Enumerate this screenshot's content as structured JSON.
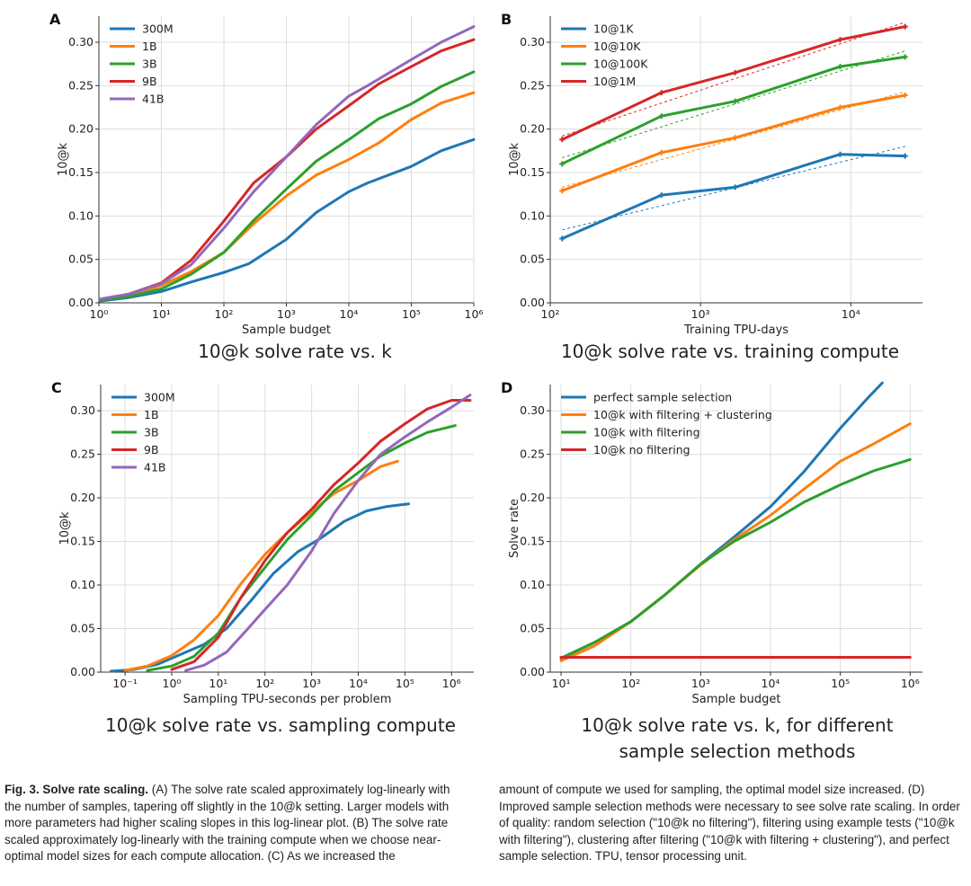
{
  "colors": {
    "blue": "#1f77b4",
    "orange": "#ff7f0e",
    "green": "#2ca02c",
    "red": "#d62728",
    "purple": "#9467bd",
    "grid": "#dddddd"
  },
  "chart_data": [
    {
      "id": "A",
      "type": "line",
      "panel_letter": "A",
      "title": "10@k solve rate vs. k",
      "xlabel": "Sample budget",
      "ylabel": "10@k",
      "xscale": "log",
      "xlim": [
        1,
        1000000
      ],
      "ylim": [
        0,
        0.33
      ],
      "xticks": [
        1,
        10,
        100,
        1000,
        10000,
        100000,
        1000000
      ],
      "xtick_labels": [
        "10⁰",
        "10¹",
        "10²",
        "10³",
        "10⁴",
        "10⁵",
        "10⁶"
      ],
      "yticks": [
        0,
        0.05,
        0.1,
        0.15,
        0.2,
        0.25,
        0.3
      ],
      "ytick_labels": [
        "0.00",
        "0.05",
        "0.10",
        "0.15",
        "0.20",
        "0.25",
        "0.30"
      ],
      "legend_loc": "upper-left",
      "series": [
        {
          "name": "300M",
          "color": "blue",
          "x": [
            1,
            3,
            10,
            30,
            100,
            250,
            1000,
            3000,
            10000,
            20000,
            100000,
            300000,
            1000000
          ],
          "y": [
            0.002,
            0.006,
            0.013,
            0.024,
            0.035,
            0.045,
            0.073,
            0.104,
            0.128,
            0.138,
            0.157,
            0.175,
            0.188
          ]
        },
        {
          "name": "1B",
          "color": "orange",
          "x": [
            1,
            3,
            10,
            30,
            100,
            300,
            1000,
            3000,
            10000,
            30000,
            100000,
            300000,
            1000000
          ],
          "y": [
            0.003,
            0.008,
            0.02,
            0.036,
            0.058,
            0.091,
            0.123,
            0.147,
            0.165,
            0.184,
            0.211,
            0.23,
            0.242
          ]
        },
        {
          "name": "3B",
          "color": "green",
          "x": [
            1,
            3,
            10,
            30,
            100,
            300,
            1000,
            3000,
            10000,
            30000,
            100000,
            300000,
            1000000
          ],
          "y": [
            0.003,
            0.007,
            0.016,
            0.033,
            0.058,
            0.095,
            0.131,
            0.163,
            0.188,
            0.212,
            0.229,
            0.249,
            0.266
          ]
        },
        {
          "name": "9B",
          "color": "red",
          "x": [
            1,
            3,
            10,
            30,
            100,
            300,
            1000,
            3000,
            10000,
            30000,
            100000,
            300000,
            1000000
          ],
          "y": [
            0.004,
            0.01,
            0.023,
            0.049,
            0.094,
            0.138,
            0.168,
            0.2,
            0.227,
            0.252,
            0.272,
            0.29,
            0.303
          ]
        },
        {
          "name": "41B",
          "color": "purple",
          "x": [
            1,
            3,
            10,
            30,
            100,
            300,
            1000,
            3000,
            10000,
            20000,
            100000,
            300000,
            1000000
          ],
          "y": [
            0.004,
            0.01,
            0.022,
            0.044,
            0.086,
            0.128,
            0.168,
            0.205,
            0.238,
            0.25,
            0.28,
            0.3,
            0.318
          ]
        }
      ]
    },
    {
      "id": "B",
      "type": "line",
      "panel_letter": "B",
      "title": "10@k solve rate vs. training compute",
      "xlabel": "Training TPU-days",
      "ylabel": "10@k",
      "xscale": "log",
      "xlim": [
        100,
        30000
      ],
      "ylim": [
        0,
        0.33
      ],
      "xticks": [
        100,
        1000,
        10000
      ],
      "xtick_labels": [
        "10²",
        "10³",
        "10⁴"
      ],
      "yticks": [
        0,
        0.05,
        0.1,
        0.15,
        0.2,
        0.25,
        0.3
      ],
      "ytick_labels": [
        "0.00",
        "0.05",
        "0.10",
        "0.15",
        "0.20",
        "0.25",
        "0.30"
      ],
      "legend_loc": "upper-left",
      "markers": true,
      "series": [
        {
          "name": "10@1K",
          "color": "blue",
          "x": [
            120,
            550,
            1700,
            8500,
            23000
          ],
          "y": [
            0.074,
            0.124,
            0.133,
            0.171,
            0.169
          ],
          "fit": [
            [
              120,
              0.084
            ],
            [
              23000,
              0.18
            ]
          ]
        },
        {
          "name": "10@10K",
          "color": "orange",
          "x": [
            120,
            550,
            1700,
            8500,
            23000
          ],
          "y": [
            0.129,
            0.173,
            0.19,
            0.225,
            0.239
          ],
          "fit": [
            [
              120,
              0.133
            ],
            [
              23000,
              0.243
            ]
          ]
        },
        {
          "name": "10@100K",
          "color": "green",
          "x": [
            120,
            550,
            1700,
            8500,
            23000
          ],
          "y": [
            0.16,
            0.215,
            0.232,
            0.272,
            0.283
          ],
          "fit": [
            [
              120,
              0.167
            ],
            [
              23000,
              0.29
            ]
          ]
        },
        {
          "name": "10@1M",
          "color": "red",
          "x": [
            120,
            550,
            1700,
            8500,
            23000
          ],
          "y": [
            0.188,
            0.242,
            0.265,
            0.303,
            0.318
          ],
          "fit": [
            [
              120,
              0.192
            ],
            [
              23000,
              0.323
            ]
          ]
        }
      ]
    },
    {
      "id": "C",
      "type": "line",
      "panel_letter": "C",
      "title": "10@k solve rate vs. sampling compute",
      "xlabel": "Sampling TPU-seconds per problem",
      "ylabel": "10@k",
      "xscale": "log",
      "xlim": [
        0.03,
        3000000
      ],
      "ylim": [
        0,
        0.33
      ],
      "xticks": [
        0.1,
        1,
        10,
        100,
        1000,
        10000,
        100000,
        1000000
      ],
      "xtick_labels": [
        "10⁻¹",
        "10⁰",
        "10¹",
        "10²",
        "10³",
        "10⁴",
        "10⁵",
        "10⁶"
      ],
      "yticks": [
        0,
        0.05,
        0.1,
        0.15,
        0.2,
        0.25,
        0.3
      ],
      "ytick_labels": [
        "0.00",
        "0.05",
        "0.10",
        "0.15",
        "0.20",
        "0.25",
        "0.30"
      ],
      "legend_loc": "upper-left",
      "series": [
        {
          "name": "300M",
          "color": "blue",
          "x": [
            0.05,
            0.15,
            0.5,
            1.5,
            5,
            15,
            50,
            150,
            500,
            1500,
            5000,
            15000,
            40000,
            120000
          ],
          "y": [
            0.001,
            0.003,
            0.009,
            0.02,
            0.032,
            0.05,
            0.082,
            0.113,
            0.138,
            0.153,
            0.173,
            0.185,
            0.19,
            0.193
          ]
        },
        {
          "name": "1B",
          "color": "orange",
          "x": [
            0.1,
            0.3,
            1,
            3,
            10,
            30,
            100,
            300,
            1000,
            3000,
            10000,
            30000,
            70000
          ],
          "y": [
            0.002,
            0.007,
            0.019,
            0.037,
            0.065,
            0.101,
            0.135,
            0.16,
            0.184,
            0.205,
            0.22,
            0.236,
            0.242
          ]
        },
        {
          "name": "3B",
          "color": "green",
          "x": [
            0.3,
            1,
            3,
            10,
            30,
            100,
            300,
            1000,
            3000,
            10000,
            30000,
            100000,
            300000,
            1200000
          ],
          "y": [
            0.002,
            0.007,
            0.018,
            0.045,
            0.085,
            0.12,
            0.152,
            0.18,
            0.208,
            0.229,
            0.248,
            0.263,
            0.275,
            0.283
          ]
        },
        {
          "name": "9B",
          "color": "red",
          "x": [
            1,
            3,
            10,
            30,
            100,
            300,
            1000,
            3000,
            10000,
            30000,
            100000,
            300000,
            1000000,
            2500000
          ],
          "y": [
            0.003,
            0.012,
            0.04,
            0.085,
            0.128,
            0.16,
            0.187,
            0.215,
            0.24,
            0.265,
            0.285,
            0.302,
            0.312,
            0.312
          ]
        },
        {
          "name": "41B",
          "color": "purple",
          "x": [
            2,
            5,
            15,
            40,
            100,
            300,
            1000,
            3000,
            10000,
            30000,
            100000,
            300000,
            1000000,
            2500000
          ],
          "y": [
            0.002,
            0.008,
            0.023,
            0.048,
            0.072,
            0.1,
            0.139,
            0.182,
            0.22,
            0.25,
            0.27,
            0.287,
            0.304,
            0.318
          ]
        }
      ]
    },
    {
      "id": "D",
      "type": "line",
      "panel_letter": "D",
      "title": "10@k solve rate vs. k, for different\nsample selection methods",
      "xlabel": "Sample budget",
      "ylabel": "Solve rate",
      "xscale": "log",
      "xlim": [
        7,
        1500000
      ],
      "ylim": [
        0,
        0.33
      ],
      "xticks": [
        10,
        100,
        1000,
        10000,
        100000,
        1000000
      ],
      "xtick_labels": [
        "10¹",
        "10²",
        "10³",
        "10⁴",
        "10⁵",
        "10⁶"
      ],
      "yticks": [
        0,
        0.05,
        0.1,
        0.15,
        0.2,
        0.25,
        0.3
      ],
      "ytick_labels": [
        "0.00",
        "0.05",
        "0.10",
        "0.15",
        "0.20",
        "0.25",
        "0.30"
      ],
      "legend_loc": "upper-left",
      "series": [
        {
          "name": "perfect sample selection",
          "color": "blue",
          "x": [
            10,
            30,
            100,
            300,
            1000,
            3000,
            10000,
            30000,
            100000,
            250000,
            400000
          ],
          "y": [
            0.016,
            0.034,
            0.058,
            0.088,
            0.124,
            0.155,
            0.19,
            0.23,
            0.28,
            0.315,
            0.332
          ]
        },
        {
          "name": "10@k with filtering + clustering",
          "color": "orange",
          "x": [
            10,
            30,
            100,
            300,
            1000,
            3000,
            10000,
            30000,
            100000,
            300000,
            1000000
          ],
          "y": [
            0.013,
            0.03,
            0.058,
            0.088,
            0.123,
            0.152,
            0.18,
            0.21,
            0.242,
            0.262,
            0.285
          ]
        },
        {
          "name": "10@k with filtering",
          "color": "green",
          "x": [
            10,
            30,
            100,
            300,
            1000,
            3000,
            10000,
            30000,
            100000,
            300000,
            1000000
          ],
          "y": [
            0.016,
            0.034,
            0.058,
            0.088,
            0.124,
            0.15,
            0.172,
            0.195,
            0.215,
            0.231,
            0.244
          ]
        },
        {
          "name": "10@k no filtering",
          "color": "red",
          "x": [
            10,
            100,
            1000,
            10000,
            100000,
            1000000
          ],
          "y": [
            0.017,
            0.017,
            0.017,
            0.017,
            0.017,
            0.017
          ]
        }
      ]
    }
  ],
  "caption": {
    "figure_label": "Fig. 3. Solve rate scaling.",
    "left_text": " (A) The solve rate scaled approximately log-linearly with the number of samples, tapering off slightly in the 10@k setting. Larger models with more parameters had higher scaling slopes in this log-linear plot. (B) The solve rate scaled approximately log-linearly with the training compute when we choose near-optimal model sizes for each compute allocation. (C) As we increased the",
    "right_text": "amount of compute we used for sampling, the optimal model size increased. (D) Improved sample selection methods were necessary to see solve rate scaling. In order of quality: random selection (\"10@k no filtering\"), filtering using example tests (\"10@k with filtering\"), clustering after filtering (\"10@k with filtering + clustering\"), and perfect sample selection. TPU, tensor processing unit."
  }
}
